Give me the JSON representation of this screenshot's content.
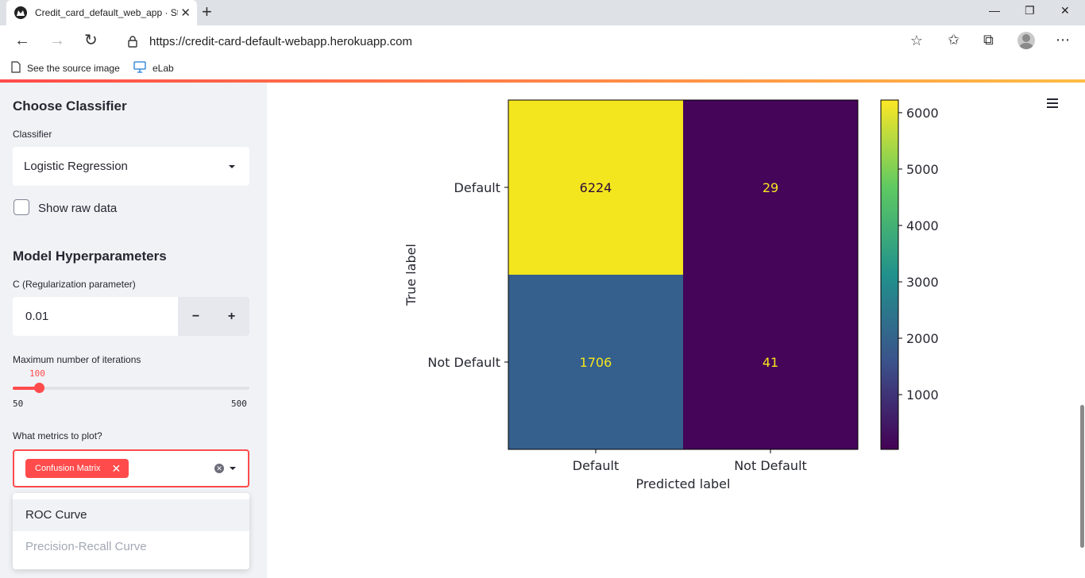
{
  "browser": {
    "tab_title": "Credit_card_default_web_app · St",
    "url": "https://credit-card-default-webapp.herokuapp.com",
    "bookmarks": [
      "See the source image",
      "eLab"
    ]
  },
  "sidebar": {
    "section_classifier": "Choose Classifier",
    "classifier_label": "Classifier",
    "classifier_value": "Logistic Regression",
    "show_raw_label": "Show raw data",
    "show_raw_checked": false,
    "section_hyper": "Model Hyperparameters",
    "c_label": "C (Regularization parameter)",
    "c_value": "0.01",
    "minus": "−",
    "plus": "+",
    "iter_label": "Maximum number of iterations",
    "iter_value": "100",
    "iter_min": "50",
    "iter_max": "500",
    "metrics_label": "What metrics to plot?",
    "metrics_selected": "Confusion Matrix",
    "dropdown_options": [
      "ROC Curve",
      "Precision-Recall Curve"
    ]
  },
  "chart_data": {
    "type": "heatmap",
    "title": "",
    "xlabel": "Predicted label",
    "ylabel": "True label",
    "x_categories": [
      "Default",
      "Not Default"
    ],
    "y_categories": [
      "Default",
      "Not Default"
    ],
    "values": [
      [
        6224,
        29
      ],
      [
        1706,
        41
      ]
    ],
    "cell_colors": [
      [
        "#f4e61e",
        "#450559"
      ],
      [
        "#355f8d",
        "#450559"
      ]
    ],
    "text_colors": [
      [
        "#2c0a3a",
        "#f4e61e"
      ],
      [
        "#f4e61e",
        "#f4e61e"
      ]
    ],
    "colorbar_ticks": [
      "1000",
      "2000",
      "3000",
      "4000",
      "5000",
      "6000"
    ],
    "colorbar_range": [
      29,
      6224
    ],
    "colormap": "viridis"
  }
}
